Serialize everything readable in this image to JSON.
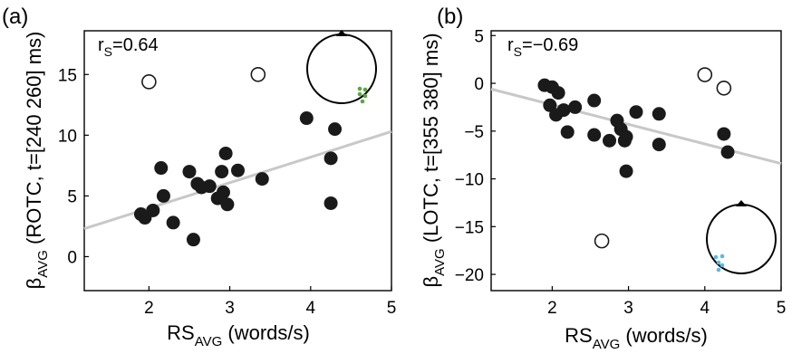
{
  "chart_data": [
    {
      "type": "scatter",
      "panel_label": "(a)",
      "stat": {
        "prefix": "r",
        "sub": "S",
        "value": "=0.64"
      },
      "xlabel": {
        "main": "RS",
        "sub": "AVG",
        "rest": " (words/s)"
      },
      "ylabel": {
        "main": "β",
        "sub": "AVG",
        "rest": " (ROTC, t=[240  260] ms)"
      },
      "xlim": [
        1.2,
        5
      ],
      "ylim": [
        -2.8,
        18.6
      ],
      "xticks": [
        2,
        3,
        4,
        5
      ],
      "yticks": [
        0,
        5,
        10,
        15
      ],
      "filled_points": [
        {
          "x": 1.9,
          "y": 3.5
        },
        {
          "x": 1.95,
          "y": 3.2
        },
        {
          "x": 2.05,
          "y": 3.8
        },
        {
          "x": 2.15,
          "y": 7.3
        },
        {
          "x": 2.18,
          "y": 5.0
        },
        {
          "x": 2.3,
          "y": 2.8
        },
        {
          "x": 2.5,
          "y": 7.0
        },
        {
          "x": 2.55,
          "y": 1.4
        },
        {
          "x": 2.6,
          "y": 6.0
        },
        {
          "x": 2.65,
          "y": 5.7
        },
        {
          "x": 2.75,
          "y": 5.8
        },
        {
          "x": 2.85,
          "y": 4.8
        },
        {
          "x": 2.9,
          "y": 7.0
        },
        {
          "x": 2.92,
          "y": 5.3
        },
        {
          "x": 2.95,
          "y": 8.5
        },
        {
          "x": 2.97,
          "y": 4.3
        },
        {
          "x": 3.1,
          "y": 7.1
        },
        {
          "x": 3.4,
          "y": 6.4
        },
        {
          "x": 3.95,
          "y": 11.4
        },
        {
          "x": 4.25,
          "y": 8.1
        },
        {
          "x": 4.25,
          "y": 4.4
        },
        {
          "x": 4.3,
          "y": 10.5
        }
      ],
      "open_points": [
        {
          "x": 2.0,
          "y": 14.4
        },
        {
          "x": 3.35,
          "y": 15.0
        }
      ],
      "fit_line": [
        {
          "x": 1.2,
          "y": 2.3
        },
        {
          "x": 5,
          "y": 10.3
        }
      ],
      "colors": {
        "points": "#1a1a1a",
        "fit": "#c8c8c8",
        "electrodes": "#5aa63e"
      }
    },
    {
      "type": "scatter",
      "panel_label": "(b)",
      "stat": {
        "prefix": "r",
        "sub": "S",
        "value": "=−0.69"
      },
      "xlabel": {
        "main": "RS",
        "sub": "AVG",
        "rest": " (words/s)"
      },
      "ylabel": {
        "main": "β",
        "sub": "AVG",
        "rest": " (LOTC, t=[355  380] ms)"
      },
      "xlim": [
        1.2,
        5
      ],
      "ylim": [
        -21.7,
        5.5
      ],
      "xticks": [
        2,
        3,
        4,
        5
      ],
      "yticks": [
        5,
        0,
        -5,
        -10,
        -15,
        -20
      ],
      "filled_points": [
        {
          "x": 1.9,
          "y": -0.2
        },
        {
          "x": 1.97,
          "y": -2.3
        },
        {
          "x": 2.0,
          "y": -0.4
        },
        {
          "x": 2.05,
          "y": -3.3
        },
        {
          "x": 2.08,
          "y": -1.0
        },
        {
          "x": 2.15,
          "y": -2.8
        },
        {
          "x": 2.2,
          "y": -5.1
        },
        {
          "x": 2.3,
          "y": -2.5
        },
        {
          "x": 2.55,
          "y": -1.8
        },
        {
          "x": 2.55,
          "y": -5.4
        },
        {
          "x": 2.75,
          "y": -6.0
        },
        {
          "x": 2.85,
          "y": -3.9
        },
        {
          "x": 2.9,
          "y": -4.8
        },
        {
          "x": 2.95,
          "y": -6.0
        },
        {
          "x": 2.97,
          "y": -5.6
        },
        {
          "x": 2.97,
          "y": -9.2
        },
        {
          "x": 3.1,
          "y": -3.0
        },
        {
          "x": 3.4,
          "y": -3.2
        },
        {
          "x": 3.4,
          "y": -6.4
        },
        {
          "x": 4.25,
          "y": -5.3
        },
        {
          "x": 4.3,
          "y": -7.2
        }
      ],
      "open_points": [
        {
          "x": 2.65,
          "y": -16.5
        },
        {
          "x": 4.0,
          "y": 0.9
        },
        {
          "x": 4.25,
          "y": -0.5
        }
      ],
      "fit_line": [
        {
          "x": 1.2,
          "y": -0.6
        },
        {
          "x": 5,
          "y": -8.4
        }
      ],
      "colors": {
        "points": "#1a1a1a",
        "fit": "#c8c8c8",
        "electrodes": "#5bb8e6"
      }
    }
  ]
}
